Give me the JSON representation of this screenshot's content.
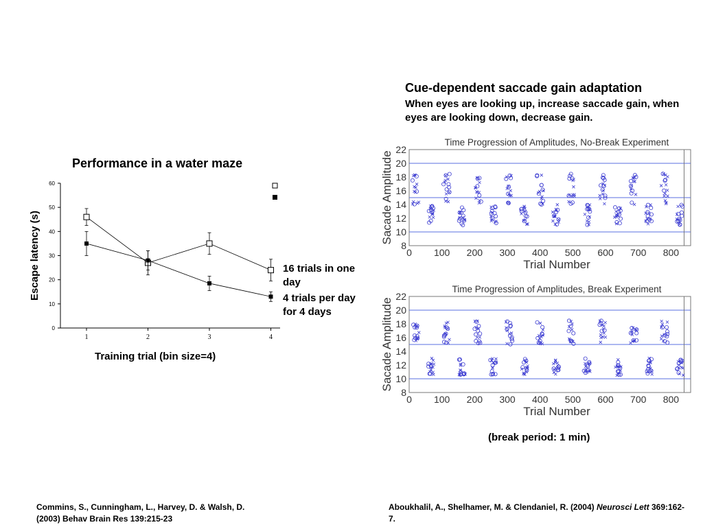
{
  "colors": {
    "ink": "#000000",
    "scatter_blue": "#3b3bd1",
    "reference_line": "#5a6fe0",
    "plot_border": "#777777"
  },
  "maze": {
    "note_16": "16 trials in one day",
    "note_4": "4 trials per day for 4 days"
  },
  "saccade": {
    "heading": "Cue-dependent saccade gain adaptation",
    "description": "When eyes are looking up, increase saccade gain, when eyes are looking down, decrease gain.",
    "break_note": "(break period: 1 min)"
  },
  "citations": {
    "left": "Commins, S., Cunningham, L., Harvey, D. & Walsh, D. (2003) Behav Brain Res 139:215-23",
    "right_authors": "Aboukhalil, A., Shelhamer, M. & Clendaniel, R. (2004) ",
    "right_journal": "Neurosci Lett",
    "right_ref": " 369:162-7."
  },
  "chart_data": [
    {
      "type": "line",
      "title": "Performance in a water maze",
      "xlabel": "Training trial (bin size=4)",
      "ylabel": "Escape latency (s)",
      "x": [
        1,
        2,
        3,
        4
      ],
      "xticks": [
        "1",
        "2",
        "3",
        "4"
      ],
      "yticks": [
        "0",
        "10",
        "20",
        "30",
        "40",
        "50",
        "60"
      ],
      "ylim": [
        0,
        60
      ],
      "legend": "top-right",
      "series": [
        {
          "marker": "open-square",
          "values": [
            46,
            27,
            35,
            24
          ],
          "errors": [
            3.5,
            5,
            4.5,
            4.5
          ]
        },
        {
          "marker": "filled-square",
          "values": [
            35,
            28,
            18.5,
            13
          ],
          "errors": [
            5,
            4,
            3,
            2
          ]
        }
      ]
    },
    {
      "type": "scatter",
      "title": "Time Progression of Amplitudes, No-Break Experiment",
      "xlabel": "Trial Number",
      "ylabel": "Sacade Amplitude",
      "xlim": [
        0,
        860
      ],
      "ylim": [
        8,
        22
      ],
      "xticks": [
        "0",
        "100",
        "200",
        "300",
        "400",
        "500",
        "600",
        "700",
        "800"
      ],
      "yticks": [
        "8",
        "10",
        "12",
        "14",
        "16",
        "18",
        "20",
        "22"
      ],
      "reference_lines": [
        10,
        15,
        20
      ],
      "block_boundary": 840,
      "grid": false,
      "series": [
        {
          "marker": "cross",
          "description_values": "up-cue blocks",
          "y_range": [
            14,
            18.5
          ]
        },
        {
          "marker": "circle",
          "description_values": "down-cue blocks",
          "y_range": [
            11,
            14
          ]
        }
      ]
    },
    {
      "type": "scatter",
      "title": "Time Progression of Amplitudes, Break Experiment",
      "xlabel": "Trial Number",
      "ylabel": "Sacade Amplitude",
      "xlim": [
        0,
        860
      ],
      "ylim": [
        8,
        22
      ],
      "xticks": [
        "0",
        "100",
        "200",
        "300",
        "400",
        "500",
        "600",
        "700",
        "800"
      ],
      "yticks": [
        "8",
        "10",
        "12",
        "14",
        "16",
        "18",
        "20",
        "22"
      ],
      "reference_lines": [
        10,
        15,
        20
      ],
      "block_boundary": 840,
      "grid": false,
      "series": [
        {
          "marker": "cross",
          "description_values": "up-cue blocks",
          "y_range": [
            15,
            18.5
          ]
        },
        {
          "marker": "circle",
          "description_values": "down-cue blocks",
          "y_range": [
            10.5,
            13
          ]
        }
      ]
    }
  ]
}
